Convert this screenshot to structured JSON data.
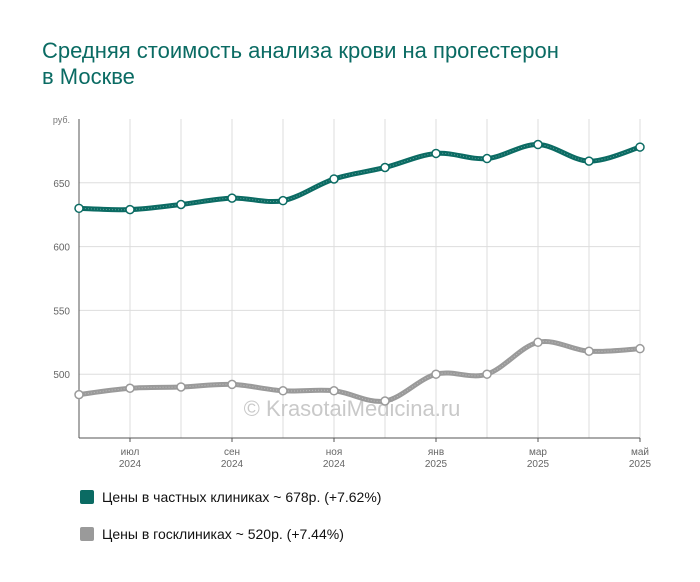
{
  "title": "Средняя стоимость анализа крови на прогестерон в Москве",
  "watermark": "© KrasotaiMedicina.ru",
  "colors": {
    "private": "#0b6b63",
    "public": "#9a9a9a",
    "grid": "#dddddd",
    "axis": "#555555"
  },
  "chart_data": {
    "type": "line",
    "title": "Средняя стоимость анализа крови на прогестерон в Москве",
    "ylabel": "руб.",
    "ylim": [
      450,
      700
    ],
    "yticks": [
      500,
      550,
      600,
      650
    ],
    "grid": true,
    "legend_position": "bottom",
    "x_tick_labels": [
      {
        "idx": 1,
        "line1": "июл",
        "line2": "2024"
      },
      {
        "idx": 3,
        "line1": "сен",
        "line2": "2024"
      },
      {
        "idx": 5,
        "line1": "ноя",
        "line2": "2024"
      },
      {
        "idx": 7,
        "line1": "янв",
        "line2": "2025"
      },
      {
        "idx": 9,
        "line1": "мар",
        "line2": "2025"
      },
      {
        "idx": 11,
        "line1": "май",
        "line2": "2025"
      }
    ],
    "series": [
      {
        "name": "Цены в частных клиниках ~ 678р. (+7.62%)",
        "color": "#0b6b63",
        "values": [
          630,
          629,
          633,
          638,
          636,
          653,
          662,
          673,
          669,
          680,
          667,
          678
        ]
      },
      {
        "name": "Цены в госклиниках ~ 520р. (+7.44%)",
        "color": "#9a9a9a",
        "values": [
          484,
          489,
          490,
          492,
          487,
          487,
          479,
          500,
          500,
          525,
          518,
          520
        ]
      }
    ]
  },
  "legend": {
    "items": [
      {
        "label": "Цены в частных клиниках ~ 678р. (+7.62%)",
        "color": "#0b6b63"
      },
      {
        "label": "Цены в госклиниках ~ 520р. (+7.44%)",
        "color": "#9a9a9a"
      }
    ]
  }
}
